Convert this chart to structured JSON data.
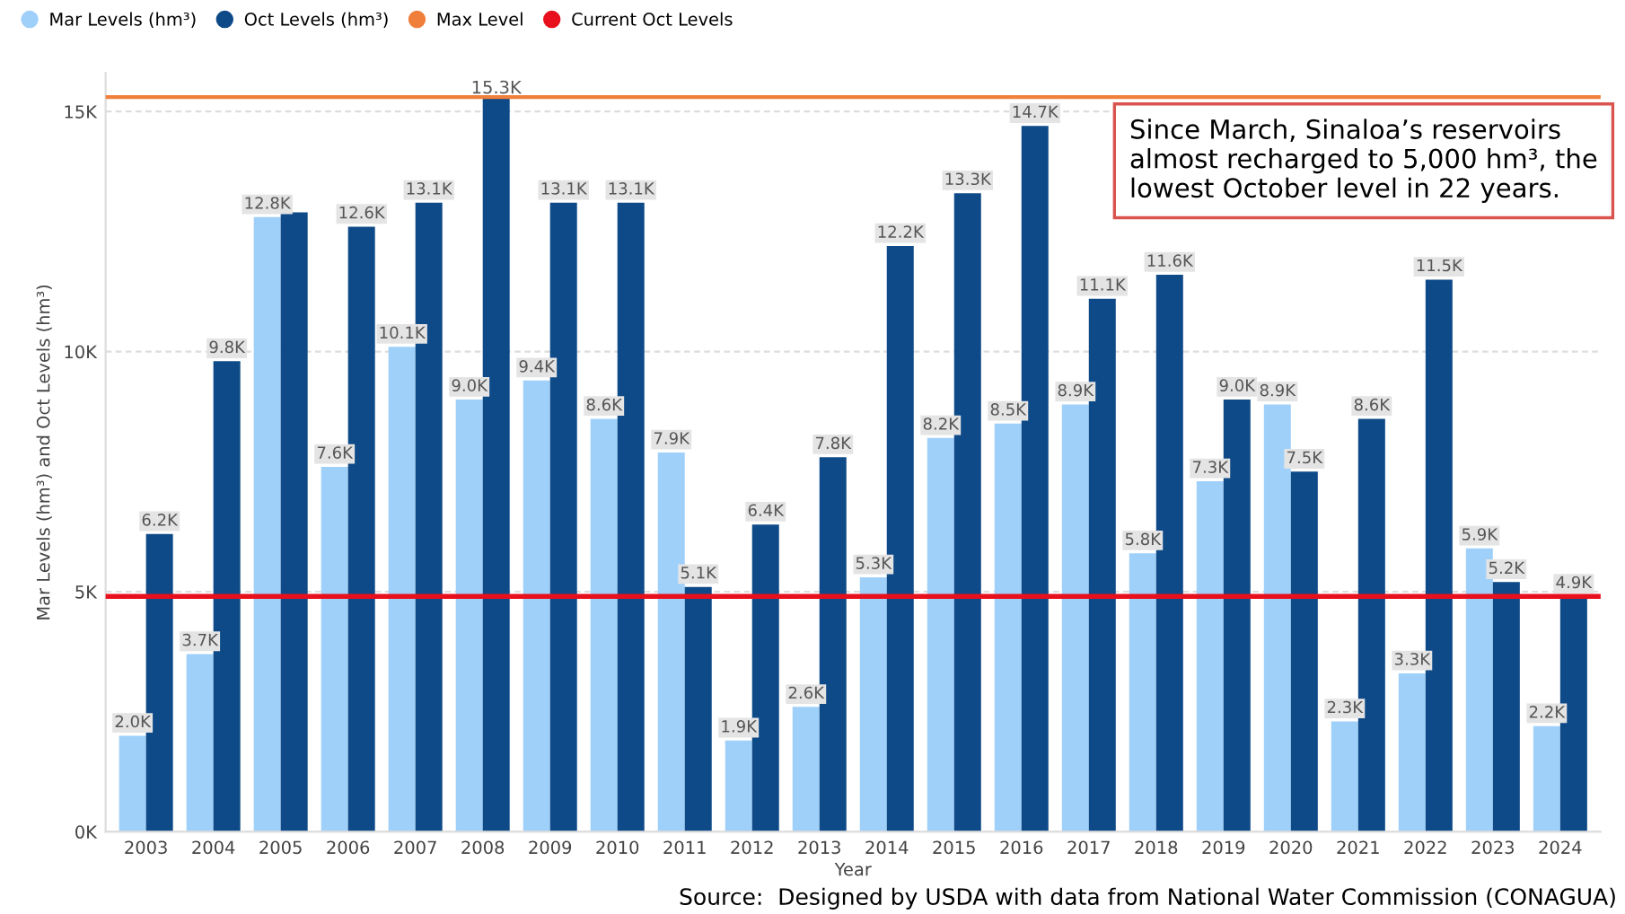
{
  "chart_data": {
    "type": "bar",
    "xlabel": "Year",
    "ylabel": "Mar Levels (hm³) and Oct Levels (hm³)",
    "categories": [
      "2003",
      "2004",
      "2005",
      "2006",
      "2007",
      "2008",
      "2009",
      "2010",
      "2011",
      "2012",
      "2013",
      "2014",
      "2015",
      "2016",
      "2017",
      "2018",
      "2019",
      "2020",
      "2021",
      "2022",
      "2023",
      "2024"
    ],
    "series": [
      {
        "name": "Mar Levels (hm³)",
        "color": "#9fd0fa",
        "values": [
          2000,
          3700,
          12800,
          7600,
          10100,
          9000,
          9400,
          8600,
          7900,
          1900,
          2600,
          5300,
          8200,
          8500,
          8900,
          5800,
          7300,
          8900,
          2300,
          3300,
          5900,
          2200
        ],
        "value_labels": [
          "2.0K",
          "3.7K",
          "12.8K",
          "7.6K",
          "10.1K",
          "9.0K",
          "9.4K",
          "8.6K",
          "7.9K",
          "1.9K",
          "2.6K",
          "5.3K",
          "8.2K",
          "8.5K",
          "8.9K",
          "5.8K",
          "7.3K",
          "8.9K",
          "2.3K",
          "3.3K",
          "5.9K",
          "2.2K"
        ]
      },
      {
        "name": "Oct Levels (hm³)",
        "color": "#0e4a88",
        "values": [
          6200,
          9800,
          12900,
          12600,
          13100,
          15300,
          13100,
          13100,
          5100,
          6400,
          7800,
          12200,
          13300,
          14700,
          11100,
          11600,
          9000,
          7500,
          8600,
          11500,
          5200,
          4900
        ],
        "value_labels": [
          "6.2K",
          "9.8K",
          null,
          "12.6K",
          "13.1K",
          null,
          "13.1K",
          "13.1K",
          "5.1K",
          "6.4K",
          "7.8K",
          "12.2K",
          "13.3K",
          "14.7K",
          "11.1K",
          "11.6K",
          "9.0K",
          "7.5K",
          "8.6K",
          "11.5K",
          "5.2K",
          "4.9K"
        ]
      }
    ],
    "ref_lines": [
      {
        "axis": "y",
        "value": 15300,
        "label": "Max Level",
        "color": "#f07f3c"
      },
      {
        "axis": "y",
        "value": 4900,
        "label": "Current Oct Levels",
        "color": "#e8101c"
      }
    ],
    "ylim": [
      0,
      15800
    ],
    "yticks": [
      {
        "value": 0,
        "label": "0K"
      },
      {
        "value": 5000,
        "label": "5K"
      },
      {
        "value": 10000,
        "label": "10K"
      },
      {
        "value": 15000,
        "label": "15K"
      }
    ],
    "grid": "y",
    "legend": "top left",
    "annotations": [
      {
        "text": "15.3K",
        "x": "2008",
        "y": 15300
      },
      "Since March, Sinaloa’s reservoirs almost recharged to 5,000 hm³, the lowest October level in 22 years.",
      "Source:  Designed by USDA with data from National Water Commission (CONAGUA)"
    ]
  }
}
